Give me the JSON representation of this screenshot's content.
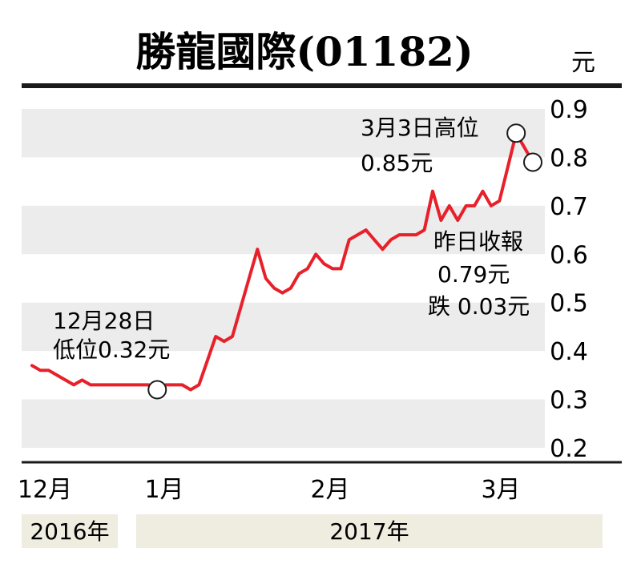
{
  "chart_data": {
    "type": "line",
    "title": "勝龍國際(01182)",
    "unit": "元",
    "ylim": [
      0.2,
      0.9
    ],
    "yticks": [
      "0.9",
      "0.8",
      "0.7",
      "0.6",
      "0.5",
      "0.4",
      "0.3",
      "0.2"
    ],
    "xticks": [
      "12月",
      "1月",
      "2月",
      "3月"
    ],
    "years": [
      "2016年",
      "2017年"
    ],
    "grid": "alternating horizontal bands",
    "line_color": "#e8202a",
    "series": [
      {
        "values": [
          0.37,
          0.36,
          0.36,
          0.35,
          0.34,
          0.33,
          0.34,
          0.33,
          0.33,
          0.33,
          0.33,
          0.33,
          0.33,
          0.33,
          0.33,
          0.32,
          0.33,
          0.33,
          0.33,
          0.32,
          0.33,
          0.38,
          0.43,
          0.42,
          0.43,
          0.49,
          0.55,
          0.61,
          0.55,
          0.53,
          0.52,
          0.53,
          0.56,
          0.57,
          0.6,
          0.58,
          0.57,
          0.57,
          0.63,
          0.64,
          0.65,
          0.63,
          0.61,
          0.63,
          0.64,
          0.64,
          0.64,
          0.65,
          0.73,
          0.67,
          0.7,
          0.67,
          0.7,
          0.7,
          0.73,
          0.7,
          0.71,
          0.78,
          0.85,
          0.82,
          0.79
        ]
      }
    ],
    "annotations": [
      {
        "lines": [
          "12月28日",
          "低位0.32元"
        ],
        "value": 0.32
      },
      {
        "lines": [
          "3月3日高位",
          "0.85元"
        ],
        "value": 0.85
      },
      {
        "lines": [
          "昨日收報",
          "0.79元",
          "跌 0.03元"
        ],
        "value": 0.79
      }
    ]
  }
}
